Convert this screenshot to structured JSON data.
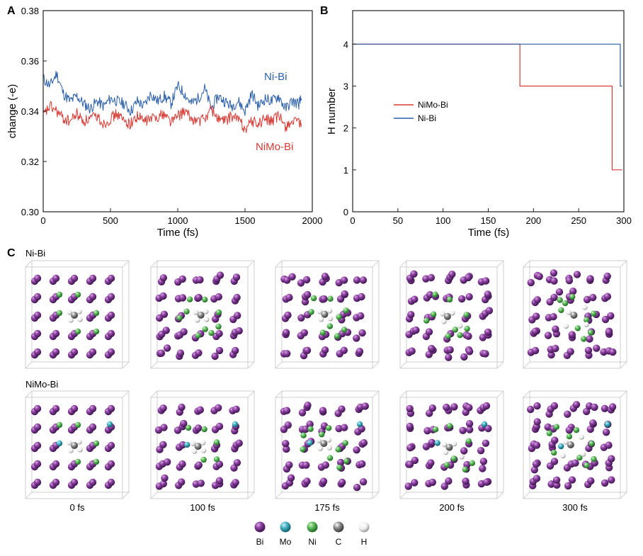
{
  "panels": {
    "a": "A",
    "b": "B",
    "c": "C"
  },
  "chart_data": [
    {
      "type": "line",
      "panel": "A",
      "xlabel": "Time (fs)",
      "ylabel": "change (-e)",
      "xlim": [
        0,
        2000
      ],
      "ylim": [
        0.3,
        0.38
      ],
      "xticks": [
        0,
        500,
        1000,
        1500,
        2000
      ],
      "yticks": [
        0.3,
        0.32,
        0.34,
        0.36,
        0.38
      ],
      "grid": false,
      "series": [
        {
          "name": "Ni-Bi",
          "color": "#2a5ea8",
          "x": [
            0,
            50,
            100,
            150,
            200,
            250,
            300,
            350,
            400,
            450,
            500,
            550,
            600,
            650,
            700,
            750,
            800,
            850,
            900,
            950,
            1000,
            1050,
            1100,
            1150,
            1200,
            1250,
            1300,
            1350,
            1400,
            1450,
            1500,
            1550,
            1600,
            1650,
            1700,
            1750,
            1800,
            1850,
            1900,
            1920
          ],
          "y": [
            0.353,
            0.35,
            0.355,
            0.347,
            0.344,
            0.346,
            0.343,
            0.341,
            0.344,
            0.342,
            0.345,
            0.344,
            0.343,
            0.34,
            0.344,
            0.342,
            0.347,
            0.344,
            0.346,
            0.343,
            0.35,
            0.347,
            0.343,
            0.345,
            0.349,
            0.341,
            0.346,
            0.344,
            0.342,
            0.344,
            0.34,
            0.347,
            0.342,
            0.345,
            0.344,
            0.346,
            0.341,
            0.344,
            0.343,
            0.345
          ]
        },
        {
          "name": "NiMo-Bi",
          "color": "#d63b35",
          "x": [
            0,
            50,
            100,
            150,
            200,
            250,
            300,
            350,
            400,
            450,
            500,
            550,
            600,
            650,
            700,
            750,
            800,
            850,
            900,
            950,
            1000,
            1050,
            1100,
            1150,
            1200,
            1250,
            1300,
            1350,
            1400,
            1450,
            1500,
            1550,
            1600,
            1650,
            1700,
            1750,
            1800,
            1850,
            1900,
            1920
          ],
          "y": [
            0.338,
            0.342,
            0.34,
            0.337,
            0.336,
            0.339,
            0.336,
            0.337,
            0.338,
            0.335,
            0.337,
            0.339,
            0.336,
            0.335,
            0.338,
            0.336,
            0.337,
            0.338,
            0.339,
            0.336,
            0.338,
            0.34,
            0.337,
            0.336,
            0.337,
            0.341,
            0.337,
            0.336,
            0.338,
            0.337,
            0.333,
            0.336,
            0.335,
            0.337,
            0.336,
            0.338,
            0.334,
            0.336,
            0.335,
            0.334
          ]
        }
      ]
    },
    {
      "type": "line",
      "panel": "B",
      "xlabel": "Time (fs)",
      "ylabel": "H number",
      "xlim": [
        0,
        300
      ],
      "ylim": [
        0,
        4.8
      ],
      "xticks": [
        0,
        50,
        100,
        150,
        200,
        250,
        300
      ],
      "yticks": [
        0,
        1,
        2,
        3,
        4
      ],
      "grid": false,
      "legend": "center-left",
      "series": [
        {
          "name": "NiMo-Bi",
          "color": "#d63b35",
          "x": [
            0,
            185,
            185,
            287,
            287,
            298
          ],
          "y": [
            4,
            4,
            3,
            3,
            1,
            1
          ]
        },
        {
          "name": "Ni-Bi",
          "color": "#2a5ea8",
          "x": [
            0,
            296,
            296,
            298
          ],
          "y": [
            4,
            4,
            3,
            3
          ]
        }
      ]
    }
  ],
  "snapshots": {
    "rows": [
      {
        "label": "Ni-Bi"
      },
      {
        "label": "NiMo-Bi"
      }
    ],
    "times": [
      "0 fs",
      "100 fs",
      "175 fs",
      "200 fs",
      "300 fs"
    ]
  },
  "legend_atoms": [
    {
      "label": "Bi",
      "color": "#8a3f9e"
    },
    {
      "label": "Mo",
      "color": "#46b3c4"
    },
    {
      "label": "Ni",
      "color": "#5cb85c"
    },
    {
      "label": "C",
      "color": "#8c8c8c"
    },
    {
      "label": "H",
      "color": "#f2f2f2"
    }
  ]
}
